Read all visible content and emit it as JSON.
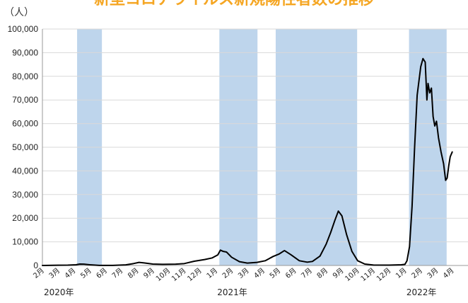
{
  "chart_data": {
    "type": "line",
    "title": "新型コロナウイルス新規陽性者数の推移",
    "y_unit": "（人）",
    "ylim": [
      0,
      100000
    ],
    "y_ticks": [
      0,
      10000,
      20000,
      30000,
      40000,
      50000,
      60000,
      70000,
      80000,
      90000,
      100000
    ],
    "y_tick_labels": [
      "0",
      "10,000",
      "20,000",
      "30,000",
      "40,000",
      "50,000",
      "60,000",
      "70,000",
      "80,000",
      "90,000",
      "100,000"
    ],
    "x_range_months": [
      0,
      27
    ],
    "x_tick_labels": [
      "2月",
      "3月",
      "4月",
      "5月",
      "6月",
      "7月",
      "8月",
      "9月",
      "10月",
      "11月",
      "12月",
      "1月",
      "2月",
      "3月",
      "4月",
      "5月",
      "6月",
      "7月",
      "8月",
      "9月",
      "10月",
      "11月",
      "12月",
      "1月",
      "2月",
      "3月",
      "4月"
    ],
    "year_labels": [
      {
        "label": "2020年",
        "month": 0
      },
      {
        "label": "2021年",
        "month": 11
      },
      {
        "label": "2022年",
        "month": 23
      }
    ],
    "shaded_periods": [
      {
        "start": "2020-04-07",
        "end": "2020-05-25"
      },
      {
        "start": "2021-01-08",
        "end": "2021-03-21"
      },
      {
        "start": "2021-04-25",
        "end": "2021-09-30"
      },
      {
        "start": "2022-01-09",
        "end": "2022-03-21"
      }
    ],
    "grid": true,
    "series": [
      {
        "color": "#000000",
        "shade_color": "#bed5ec",
        "points": [
          [
            "2020-02-01",
            0
          ],
          [
            "2020-03-01",
            100
          ],
          [
            "2020-03-20",
            150
          ],
          [
            "2020-04-05",
            300
          ],
          [
            "2020-04-12",
            600
          ],
          [
            "2020-04-20",
            550
          ],
          [
            "2020-05-01",
            300
          ],
          [
            "2020-05-20",
            50
          ],
          [
            "2020-06-15",
            50
          ],
          [
            "2020-07-10",
            250
          ],
          [
            "2020-07-25",
            800
          ],
          [
            "2020-08-05",
            1300
          ],
          [
            "2020-08-15",
            1100
          ],
          [
            "2020-09-01",
            600
          ],
          [
            "2020-09-20",
            500
          ],
          [
            "2020-10-15",
            550
          ],
          [
            "2020-11-01",
            800
          ],
          [
            "2020-11-20",
            1800
          ],
          [
            "2020-12-10",
            2500
          ],
          [
            "2020-12-25",
            3200
          ],
          [
            "2021-01-05",
            4500
          ],
          [
            "2021-01-10",
            6500
          ],
          [
            "2021-01-15",
            6000
          ],
          [
            "2021-01-22",
            5700
          ],
          [
            "2021-02-01",
            3500
          ],
          [
            "2021-02-15",
            1600
          ],
          [
            "2021-03-01",
            1000
          ],
          [
            "2021-03-20",
            1300
          ],
          [
            "2021-04-05",
            2000
          ],
          [
            "2021-04-20",
            3800
          ],
          [
            "2021-05-01",
            4800
          ],
          [
            "2021-05-12",
            6300
          ],
          [
            "2021-05-25",
            4500
          ],
          [
            "2021-06-10",
            2000
          ],
          [
            "2021-06-25",
            1400
          ],
          [
            "2021-07-05",
            1700
          ],
          [
            "2021-07-20",
            4000
          ],
          [
            "2021-08-01",
            9000
          ],
          [
            "2021-08-10",
            14000
          ],
          [
            "2021-08-18",
            19000
          ],
          [
            "2021-08-25",
            23000
          ],
          [
            "2021-09-01",
            21000
          ],
          [
            "2021-09-10",
            13000
          ],
          [
            "2021-09-20",
            6000
          ],
          [
            "2021-10-01",
            2000
          ],
          [
            "2021-10-15",
            600
          ],
          [
            "2021-11-01",
            200
          ],
          [
            "2021-12-01",
            150
          ],
          [
            "2021-12-25",
            300
          ],
          [
            "2022-01-01",
            500
          ],
          [
            "2022-01-05",
            2000
          ],
          [
            "2022-01-10",
            8000
          ],
          [
            "2022-01-15",
            25000
          ],
          [
            "2022-01-20",
            50000
          ],
          [
            "2022-01-25",
            72000
          ],
          [
            "2022-02-01",
            84000
          ],
          [
            "2022-02-05",
            87500
          ],
          [
            "2022-02-09",
            86000
          ],
          [
            "2022-02-12",
            70000
          ],
          [
            "2022-02-14",
            77000
          ],
          [
            "2022-02-17",
            73000
          ],
          [
            "2022-02-20",
            75000
          ],
          [
            "2022-02-23",
            63000
          ],
          [
            "2022-02-26",
            59000
          ],
          [
            "2022-03-01",
            61000
          ],
          [
            "2022-03-05",
            54000
          ],
          [
            "2022-03-10",
            48000
          ],
          [
            "2022-03-15",
            43000
          ],
          [
            "2022-03-19",
            36000
          ],
          [
            "2022-03-22",
            37000
          ],
          [
            "2022-03-25",
            42000
          ],
          [
            "2022-03-28",
            46000
          ],
          [
            "2022-04-01",
            48000
          ]
        ]
      }
    ]
  }
}
